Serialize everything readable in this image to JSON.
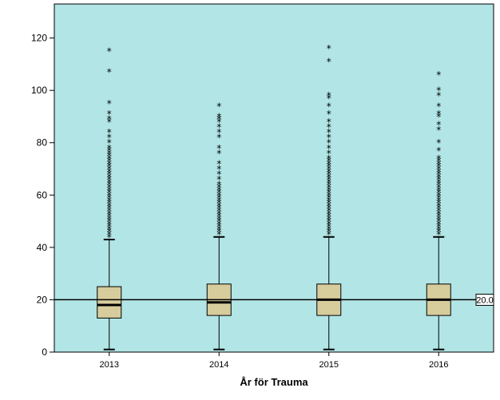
{
  "chart_data": {
    "type": "boxplot",
    "title": "",
    "xlabel": "År för Trauma",
    "ylabel": "",
    "ylim": [
      0,
      133
    ],
    "yticks": [
      0,
      20,
      40,
      60,
      80,
      100,
      120
    ],
    "categories": [
      "2013",
      "2014",
      "2015",
      "2016"
    ],
    "boxes": [
      {
        "category": "2013",
        "whisker_low": 1,
        "q1": 13,
        "median": 18,
        "q3": 25,
        "whisker_high": 43,
        "outliers": [
          44,
          45,
          46,
          47,
          48,
          49,
          50,
          51,
          52,
          53,
          54,
          55,
          56,
          57,
          58,
          59,
          60,
          61,
          62,
          63,
          64,
          65,
          66,
          67,
          68,
          69,
          70,
          71,
          72,
          73,
          74,
          75,
          76,
          77,
          78,
          80,
          82,
          84,
          88,
          89,
          91,
          95,
          107,
          115
        ]
      },
      {
        "category": "2014",
        "whisker_low": 1,
        "q1": 14,
        "median": 19,
        "q3": 26,
        "whisker_high": 44,
        "outliers": [
          45,
          46,
          47,
          48,
          49,
          50,
          51,
          52,
          53,
          54,
          55,
          56,
          57,
          58,
          59,
          60,
          61,
          62,
          63,
          64,
          66,
          68,
          70,
          72,
          76,
          78,
          82,
          84,
          86,
          88,
          89,
          90,
          94
        ]
      },
      {
        "category": "2015",
        "whisker_low": 1,
        "q1": 14,
        "median": 20,
        "q3": 26,
        "whisker_high": 44,
        "outliers": [
          45,
          46,
          47,
          48,
          49,
          50,
          51,
          52,
          53,
          54,
          55,
          56,
          57,
          58,
          59,
          60,
          61,
          62,
          63,
          64,
          65,
          66,
          67,
          68,
          69,
          70,
          71,
          72,
          73,
          74,
          76,
          78,
          80,
          82,
          84,
          86,
          88,
          91,
          94,
          97,
          98,
          111,
          116
        ]
      },
      {
        "category": "2016",
        "whisker_low": 1,
        "q1": 14,
        "median": 20,
        "q3": 26,
        "whisker_high": 44,
        "outliers": [
          45,
          46,
          47,
          48,
          49,
          50,
          51,
          52,
          53,
          54,
          55,
          56,
          57,
          58,
          59,
          60,
          61,
          62,
          63,
          64,
          65,
          66,
          67,
          68,
          69,
          70,
          71,
          72,
          73,
          74,
          77,
          80,
          85,
          87,
          90,
          91,
          94,
          98,
          100,
          106
        ]
      }
    ],
    "reference_line": {
      "value": 20,
      "label": "20.0"
    },
    "grid": false,
    "legend": "none",
    "colors": {
      "plot_background": "#b2e5e6",
      "box_fill": "#d7cc9b",
      "line": "#000000",
      "page_background": "#ffffff"
    }
  }
}
